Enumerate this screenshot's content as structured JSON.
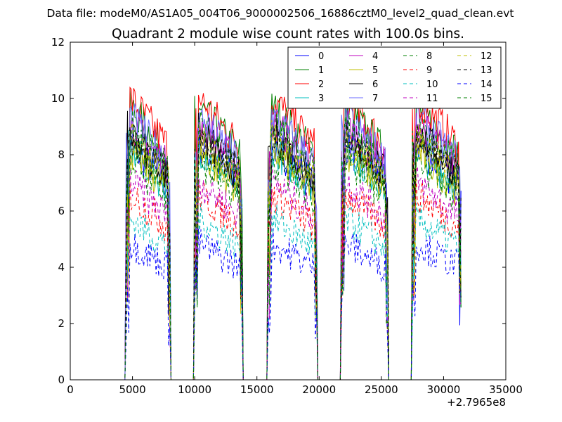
{
  "header": {
    "data_file_line": "Data file: modeM0/AS1A05_004T06_9000002506_16886cztM0_level2_quad_clean.evt"
  },
  "chart_data": {
    "type": "line",
    "title": "Quadrant 2 module wise count rates with 100.0s bins.",
    "xlabel": "",
    "ylabel": "",
    "x_offset_label": "+2.7965e8",
    "xlim": [
      0,
      35000
    ],
    "ylim": [
      0,
      12
    ],
    "x_ticks": [
      0,
      5000,
      10000,
      15000,
      20000,
      25000,
      30000,
      35000
    ],
    "y_ticks": [
      0,
      2,
      4,
      6,
      8,
      10,
      12
    ],
    "grid": false,
    "legend_position": "top-right",
    "legend_columns": 4,
    "active_intervals": [
      [
        4500,
        8000
      ],
      [
        10000,
        13800
      ],
      [
        15900,
        19800
      ],
      [
        21800,
        25500
      ],
      [
        27500,
        31400
      ]
    ],
    "series": [
      {
        "name": "0",
        "color": "#0000ff",
        "style": "solid",
        "level": 7.6
      },
      {
        "name": "1",
        "color": "#008000",
        "style": "solid",
        "level": 8.8
      },
      {
        "name": "2",
        "color": "#ff0000",
        "style": "solid",
        "level": 9.1
      },
      {
        "name": "3",
        "color": "#00bfbf",
        "style": "solid",
        "level": 7.5
      },
      {
        "name": "4",
        "color": "#bf00bf",
        "style": "solid",
        "level": 8.3
      },
      {
        "name": "5",
        "color": "#bfbf00",
        "style": "solid",
        "level": 7.4
      },
      {
        "name": "6",
        "color": "#000000",
        "style": "solid",
        "level": 8.0
      },
      {
        "name": "7",
        "color": "#6b6bff",
        "style": "solid",
        "level": 8.5
      },
      {
        "name": "8",
        "color": "#008000",
        "style": "dashed",
        "level": 8.2
      },
      {
        "name": "9",
        "color": "#ff0000",
        "style": "dashed",
        "level": 6.0
      },
      {
        "name": "10",
        "color": "#00bfbf",
        "style": "dashed",
        "level": 5.2
      },
      {
        "name": "11",
        "color": "#bf00bf",
        "style": "dashed",
        "level": 6.4
      },
      {
        "name": "12",
        "color": "#bfbf00",
        "style": "dashed",
        "level": 7.8
      },
      {
        "name": "13",
        "color": "#000000",
        "style": "dashed",
        "level": 7.9
      },
      {
        "name": "14",
        "color": "#0000ff",
        "style": "dashed",
        "level": 4.4
      },
      {
        "name": "15",
        "color": "#008000",
        "style": "dashed",
        "level": 7.1
      }
    ]
  }
}
